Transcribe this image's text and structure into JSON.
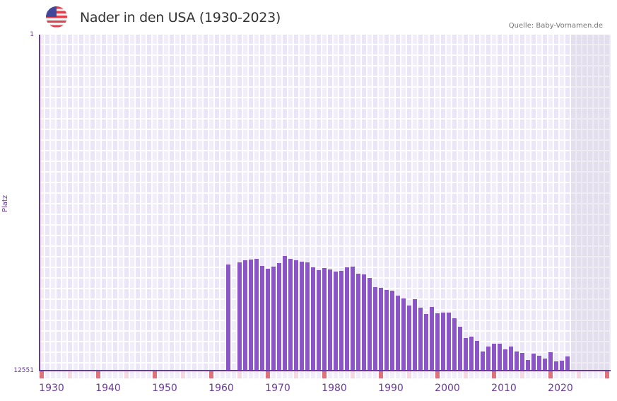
{
  "header": {
    "flag_icon": "us-flag-icon",
    "title": "Nader in den USA (1930-2023)",
    "source": "Quelle: Baby-Vornamen.de"
  },
  "axis": {
    "ylabel": "Platz",
    "ytop": "1",
    "ybottom": "12551",
    "xticks": [
      "1930",
      "1940",
      "1950",
      "1960",
      "1970",
      "1980",
      "1990",
      "2000",
      "2010",
      "2020"
    ]
  },
  "colors": {
    "bar": "#8b55c6",
    "axis": "#6a3a9c",
    "marker_red": "#e0717a",
    "marker_pink": "#f6d8e3"
  },
  "chart_data": {
    "type": "bar",
    "title": "Nader in den USA (1930-2023)",
    "xlabel": "",
    "ylabel": "Platz",
    "ylim": [
      12551,
      1
    ],
    "x_range": [
      1928,
      2028
    ],
    "note": "Rank (lower is better); bar height = 12551 - rank",
    "categories": [
      1961,
      1963,
      1964,
      1965,
      1966,
      1967,
      1968,
      1969,
      1970,
      1971,
      1972,
      1973,
      1974,
      1975,
      1976,
      1977,
      1978,
      1979,
      1980,
      1981,
      1982,
      1983,
      1984,
      1985,
      1986,
      1987,
      1988,
      1989,
      1990,
      1991,
      1992,
      1993,
      1994,
      1995,
      1996,
      1997,
      1998,
      1999,
      2000,
      2001,
      2002,
      2003,
      2004,
      2005,
      2006,
      2007,
      2008,
      2009,
      2010,
      2011,
      2012,
      2013,
      2014,
      2015,
      2016,
      2017,
      2018,
      2019,
      2020,
      2021
    ],
    "values": [
      8584,
      8505,
      8425,
      8399,
      8372,
      8637,
      8743,
      8663,
      8531,
      8267,
      8372,
      8425,
      8478,
      8505,
      8690,
      8796,
      8716,
      8769,
      8849,
      8822,
      8690,
      8663,
      8928,
      8954,
      9086,
      9430,
      9456,
      9535,
      9562,
      9747,
      9853,
      10117,
      9879,
      10196,
      10434,
      10170,
      10408,
      10381,
      10381,
      10593,
      10910,
      11333,
      11280,
      11439,
      11835,
      11650,
      11545,
      11545,
      11756,
      11650,
      11835,
      11888,
      12153,
      11915,
      11994,
      12100,
      11862,
      12206,
      12179,
      12021
    ]
  }
}
